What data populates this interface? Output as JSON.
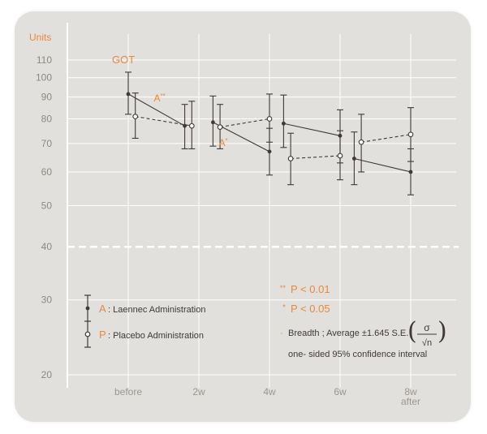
{
  "chart_data": {
    "type": "line",
    "ylabel": "Units",
    "title_label": "GOT",
    "y_ticks": [
      110,
      100,
      90,
      80,
      70,
      60,
      50,
      40,
      30,
      20
    ],
    "y_scale": "log",
    "ylim": [
      20,
      120
    ],
    "x_ticks": [
      {
        "label": "before",
        "sub": ""
      },
      {
        "label": "2w",
        "sub": ""
      },
      {
        "label": "4w",
        "sub": ""
      },
      {
        "label": "6w",
        "sub": ""
      },
      {
        "label": "8w",
        "sub": "after"
      }
    ],
    "grid": true,
    "dashed_reference_line": 40,
    "series": [
      {
        "name": "Laennec Administration",
        "letter": "A",
        "marker": "filled",
        "line_style": "solid",
        "segments": [
          {
            "x": [
              0,
              0.8
            ],
            "y": [
              91.5,
              77.0
            ],
            "lo": [
              82,
              68
            ],
            "hi": [
              103,
              86.5
            ]
          },
          {
            "x": [
              1.2,
              2.0
            ],
            "y": [
              78.5,
              67.0
            ],
            "lo": [
              69,
              59
            ],
            "hi": [
              90.5,
              76
            ]
          },
          {
            "x": [
              2.2,
              3.0
            ],
            "y": [
              78.0,
              73.0
            ],
            "lo": [
              68.5,
              63
            ],
            "hi": [
              91,
              84
            ]
          },
          {
            "x": [
              3.2,
              4.0
            ],
            "y": [
              64.5,
              60.0
            ],
            "lo": [
              56,
              53
            ],
            "hi": [
              74.5,
              68
            ]
          }
        ]
      },
      {
        "name": "Placebo Administration",
        "letter": "P",
        "marker": "open",
        "line_style": "dashed",
        "segments": [
          {
            "x": [
              0.1,
              0.9
            ],
            "y": [
              81.0,
              77.0
            ],
            "lo": [
              72,
              68
            ],
            "hi": [
              92,
              88
            ]
          },
          {
            "x": [
              1.3,
              2.0
            ],
            "y": [
              76.5,
              80.0
            ],
            "lo": [
              68,
              70.5
            ],
            "hi": [
              86.5,
              91.5
            ]
          },
          {
            "x": [
              2.3,
              3.0
            ],
            "y": [
              64.5,
              65.5
            ],
            "lo": [
              56,
              57.5
            ],
            "hi": [
              74,
              75
            ]
          },
          {
            "x": [
              3.3,
              4.0
            ],
            "y": [
              70.5,
              73.5
            ],
            "lo": [
              60,
              63.5
            ],
            "hi": [
              82,
              85
            ]
          }
        ]
      }
    ],
    "annotations": [
      {
        "text": "A",
        "sup": "**",
        "x": 0.5,
        "y": 88
      },
      {
        "text": "A",
        "sup": "*",
        "x": 1.42,
        "y": 69
      }
    ]
  },
  "legend": {
    "a_letter": "A",
    "a_text": ": Laennec Administration",
    "p_letter": "P",
    "p_text": ": Placebo Administration"
  },
  "notes": {
    "p01_sym": "**",
    "p01_text": "P < 0.01",
    "p05_sym": "*",
    "p05_text": "P < 0.05",
    "breadth_bullet": "·",
    "breadth_text": "Breadth ; Average ±1.645 S.E.",
    "sigma": "σ",
    "sqrtn": "√n",
    "ci_text": "one- sided 95% confidence interval"
  }
}
